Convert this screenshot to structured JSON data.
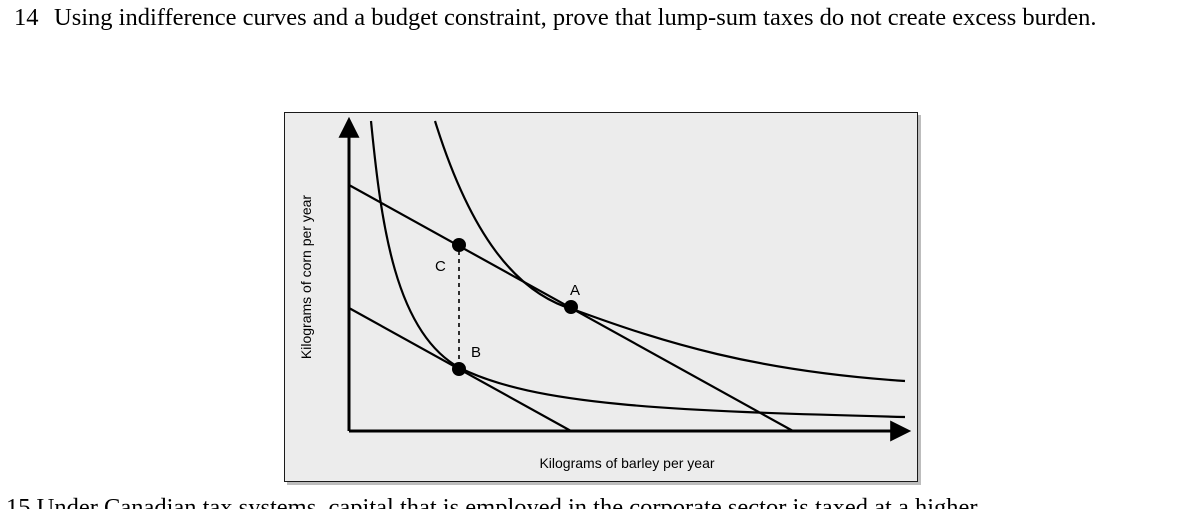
{
  "question": {
    "number": "14",
    "text": "Using indifference curves and a budget constraint, prove that lump-sum taxes do not create excess burden."
  },
  "next_question": {
    "text": "15  Under Canadian tax systems, capital that is employed in the corporate sector is taxed at a higher"
  },
  "chart_data": {
    "type": "line",
    "title": "",
    "xlabel": "Kilograms of barley per year",
    "ylabel": "Kilograms of corn per year",
    "grid": false,
    "legend": "none",
    "series": [
      {
        "role": "budget-line-upper",
        "x": [
          0,
          1
        ],
        "y": [
          1,
          0
        ]
      },
      {
        "role": "budget-line-lower",
        "x": [
          0,
          1
        ],
        "y": [
          1,
          0
        ]
      },
      {
        "role": "indifference-curve-upper"
      },
      {
        "role": "indifference-curve-lower"
      },
      {
        "role": "tax-gap-dashed",
        "from_point": "C",
        "to_point": "B"
      }
    ],
    "points": [
      {
        "label": "A"
      },
      {
        "label": "B"
      },
      {
        "label": "C"
      }
    ]
  }
}
